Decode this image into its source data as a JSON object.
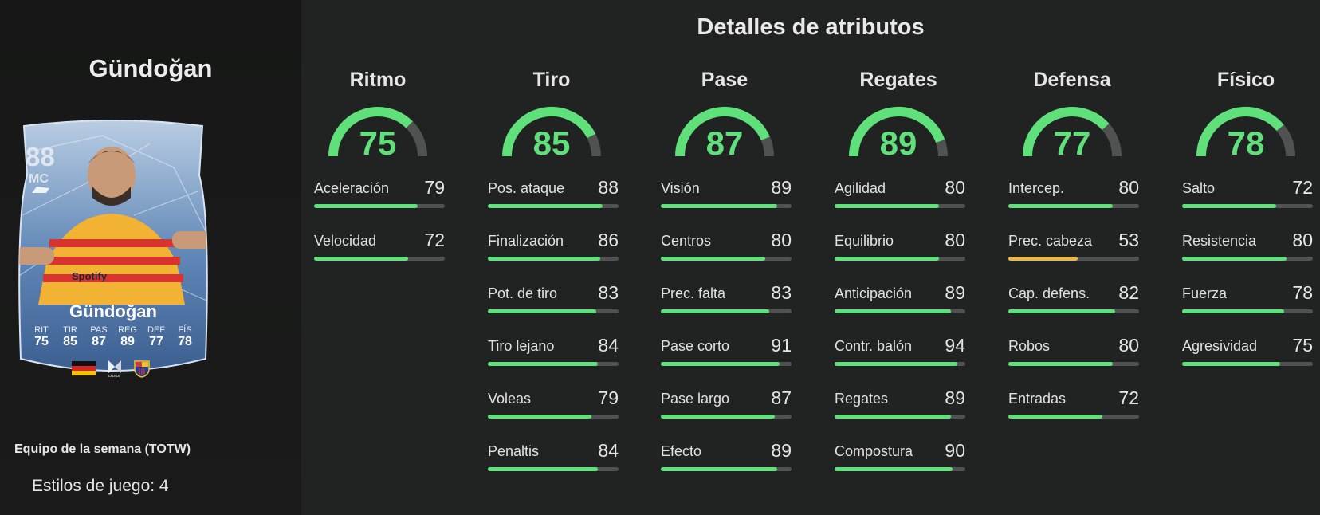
{
  "title": "Detalles de atributos",
  "player": {
    "name": "Gündoğan",
    "rating": "88",
    "position": "MC",
    "card_name": "Gündoğan",
    "sponsor": "Spotify",
    "card_stats": [
      {
        "k": "RIT",
        "v": "75"
      },
      {
        "k": "TIR",
        "v": "85"
      },
      {
        "k": "PAS",
        "v": "87"
      },
      {
        "k": "REG",
        "v": "89"
      },
      {
        "k": "DEF",
        "v": "77"
      },
      {
        "k": "FÍS",
        "v": "78"
      }
    ],
    "league_mark": "LALIGA",
    "card_type": "Equipo de la semana (TOTW)",
    "playstyles": "Estilos de juego: 4"
  },
  "colors": {
    "green": "#5fe07b",
    "yellow": "#e8b84a",
    "track": "#4f5251"
  },
  "categories": [
    {
      "name": "Ritmo",
      "value": 75,
      "stats": [
        {
          "label": "Aceleración",
          "value": 79
        },
        {
          "label": "Velocidad",
          "value": 72
        }
      ]
    },
    {
      "name": "Tiro",
      "value": 85,
      "stats": [
        {
          "label": "Pos. ataque",
          "value": 88
        },
        {
          "label": "Finalización",
          "value": 86
        },
        {
          "label": "Pot. de tiro",
          "value": 83
        },
        {
          "label": "Tiro lejano",
          "value": 84
        },
        {
          "label": "Voleas",
          "value": 79
        },
        {
          "label": "Penaltis",
          "value": 84
        }
      ]
    },
    {
      "name": "Pase",
      "value": 87,
      "stats": [
        {
          "label": "Visión",
          "value": 89
        },
        {
          "label": "Centros",
          "value": 80
        },
        {
          "label": "Prec. falta",
          "value": 83
        },
        {
          "label": "Pase corto",
          "value": 91
        },
        {
          "label": "Pase largo",
          "value": 87
        },
        {
          "label": "Efecto",
          "value": 89
        }
      ]
    },
    {
      "name": "Regates",
      "value": 89,
      "stats": [
        {
          "label": "Agilidad",
          "value": 80
        },
        {
          "label": "Equilibrio",
          "value": 80
        },
        {
          "label": "Anticipación",
          "value": 89
        },
        {
          "label": "Contr. balón",
          "value": 94
        },
        {
          "label": "Regates",
          "value": 89
        },
        {
          "label": "Compostura",
          "value": 90
        }
      ]
    },
    {
      "name": "Defensa",
      "value": 77,
      "stats": [
        {
          "label": "Intercep.",
          "value": 80
        },
        {
          "label": "Prec. cabeza",
          "value": 53
        },
        {
          "label": "Cap. defens.",
          "value": 82
        },
        {
          "label": "Robos",
          "value": 80
        },
        {
          "label": "Entradas",
          "value": 72
        }
      ]
    },
    {
      "name": "Físico",
      "value": 78,
      "stats": [
        {
          "label": "Salto",
          "value": 72
        },
        {
          "label": "Resistencia",
          "value": 80
        },
        {
          "label": "Fuerza",
          "value": 78
        },
        {
          "label": "Agresividad",
          "value": 75
        }
      ]
    }
  ]
}
